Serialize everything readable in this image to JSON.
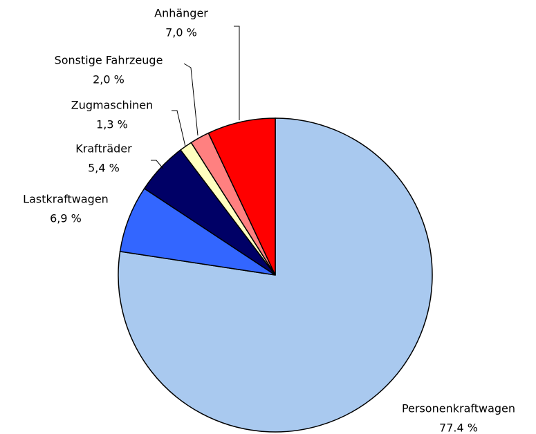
{
  "chart_data": {
    "type": "pie",
    "categories": [
      "Personenkraftwagen",
      "Lastkraftwagen",
      "Krafträder",
      "Zugmaschinen",
      "Sonstige Fahrzeuge",
      "Anhänger"
    ],
    "values": [
      77.4,
      6.9,
      5.4,
      1.3,
      2.0,
      7.0
    ],
    "value_labels": [
      "77.4 %",
      "6,9 %",
      "5,4 %",
      "1,3 %",
      "2,0 %",
      "7,0 %"
    ],
    "colors": [
      "#a9c9ef",
      "#3366ff",
      "#000066",
      "#ffffc0",
      "#ff8080",
      "#ff0000"
    ]
  }
}
